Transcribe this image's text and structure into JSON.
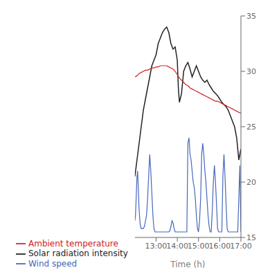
{
  "chart_data": {
    "type": "line",
    "xlabel": "Time (h)",
    "xlim": [
      12.0,
      17.0
    ],
    "xticks": [
      {
        "value": 13.0,
        "label": "13:00"
      },
      {
        "value": 14.0,
        "label": "14:00"
      },
      {
        "value": 15.0,
        "label": "15:00"
      },
      {
        "value": 16.0,
        "label": "16:00"
      },
      {
        "value": 17.0,
        "label": "17:00"
      }
    ],
    "ylim": [
      15,
      35
    ],
    "yticks": [
      15,
      20,
      25,
      30,
      35
    ],
    "grid": false,
    "legend": "bottom",
    "series": [
      {
        "name": "Solar radiation intensity",
        "color": "#222222",
        "x": [
          12.0,
          12.1,
          12.2,
          12.3,
          12.4,
          12.5,
          12.6,
          12.7,
          12.8,
          12.9,
          13.0,
          13.1,
          13.2,
          13.3,
          13.4,
          13.5,
          13.6,
          13.65,
          13.7,
          13.8,
          13.9,
          14.0,
          14.05,
          14.1,
          14.2,
          14.3,
          14.4,
          14.5,
          14.6,
          14.7,
          14.8,
          14.9,
          15.0,
          15.1,
          15.2,
          15.3,
          15.4,
          15.5,
          15.6,
          15.7,
          15.8,
          15.9,
          16.0,
          16.1,
          16.2,
          16.3,
          16.4,
          16.5,
          16.6,
          16.7,
          16.8,
          16.9,
          17.0
        ],
        "values": [
          20.5,
          22.0,
          23.5,
          25.0,
          26.5,
          27.5,
          28.5,
          29.5,
          30.5,
          31.0,
          31.5,
          32.5,
          33.0,
          33.5,
          33.8,
          34.0,
          33.5,
          33.0,
          32.5,
          32.0,
          32.2,
          31.0,
          28.5,
          27.2,
          28.0,
          30.0,
          30.5,
          30.8,
          30.2,
          29.5,
          30.0,
          30.5,
          30.0,
          29.5,
          29.2,
          29.0,
          29.2,
          28.8,
          28.5,
          28.2,
          28.0,
          27.8,
          27.5,
          27.2,
          27.0,
          26.8,
          26.5,
          26.0,
          25.5,
          25.0,
          24.0,
          22.0,
          23.0
        ]
      },
      {
        "name": "Ambient temperature",
        "color": "#cc2222",
        "x": [
          12.0,
          12.1,
          12.2,
          12.3,
          12.4,
          12.5,
          12.6,
          12.7,
          12.8,
          12.9,
          13.0,
          13.1,
          13.2,
          13.3,
          13.4,
          13.5,
          13.6,
          13.7,
          13.8,
          13.9,
          14.0,
          14.1,
          14.2,
          14.3,
          14.4,
          14.5,
          14.6,
          14.7,
          14.8,
          14.9,
          15.0,
          15.1,
          15.2,
          15.3,
          15.4,
          15.5,
          15.6,
          15.7,
          15.8,
          15.9,
          16.0,
          16.1,
          16.2,
          16.3,
          16.4,
          16.5,
          16.6,
          16.7,
          16.8,
          16.9,
          17.0
        ],
        "values": [
          29.5,
          29.6,
          29.8,
          29.9,
          30.0,
          30.1,
          30.1,
          30.2,
          30.3,
          30.3,
          30.4,
          30.4,
          30.5,
          30.5,
          30.5,
          30.5,
          30.4,
          30.3,
          30.2,
          30.0,
          29.7,
          29.4,
          29.2,
          29.0,
          28.8,
          28.7,
          28.5,
          28.4,
          28.3,
          28.2,
          28.1,
          28.0,
          27.9,
          27.8,
          27.7,
          27.6,
          27.5,
          27.4,
          27.3,
          27.3,
          27.2,
          27.1,
          27.0,
          26.9,
          26.8,
          26.7,
          26.6,
          26.5,
          26.4,
          26.3,
          26.2
        ]
      },
      {
        "name": "Wind speed",
        "color": "#4466bb",
        "x": [
          12.0,
          12.03,
          12.06,
          12.1,
          12.13,
          12.16,
          12.2,
          12.25,
          12.3,
          12.35,
          12.4,
          12.45,
          12.5,
          12.55,
          12.6,
          12.65,
          12.7,
          12.75,
          12.8,
          12.85,
          12.9,
          12.95,
          13.0,
          13.05,
          13.1,
          13.15,
          13.2,
          13.25,
          13.3,
          13.35,
          13.4,
          13.45,
          13.5,
          13.55,
          13.6,
          13.65,
          13.7,
          13.75,
          13.8,
          13.85,
          13.9,
          13.95,
          14.0,
          14.05,
          14.1,
          14.15,
          14.2,
          14.25,
          14.3,
          14.35,
          14.4,
          14.45,
          14.5,
          14.55,
          14.6,
          14.65,
          14.7,
          14.75,
          14.8,
          14.85,
          14.9,
          14.95,
          15.0,
          15.05,
          15.1,
          15.15,
          15.2,
          15.25,
          15.3,
          15.35,
          15.4,
          15.45,
          15.5,
          15.55,
          15.6,
          15.65,
          15.7,
          15.75,
          15.8,
          15.85,
          15.9,
          15.95,
          16.0,
          16.05,
          16.1,
          16.15,
          16.2,
          16.25,
          16.3,
          16.35,
          16.4,
          16.45,
          16.5,
          16.55,
          16.6,
          16.65,
          16.7,
          16.75,
          16.8,
          16.85,
          16.9,
          16.95,
          17.0
        ],
        "values": [
          16.5,
          17.0,
          18.5,
          20.5,
          21.0,
          19.5,
          17.5,
          16.2,
          15.8,
          15.8,
          15.8,
          16.0,
          16.5,
          17.0,
          18.5,
          20.5,
          22.5,
          21.0,
          19.0,
          17.0,
          15.8,
          15.5,
          15.5,
          15.5,
          15.5,
          15.5,
          15.5,
          15.5,
          15.5,
          15.5,
          15.5,
          15.5,
          15.5,
          15.5,
          15.5,
          15.6,
          16.0,
          16.5,
          16.3,
          15.8,
          15.5,
          15.5,
          15.5,
          15.5,
          15.5,
          15.5,
          15.5,
          15.5,
          15.5,
          15.5,
          15.5,
          15.5,
          23.5,
          24.0,
          22.5,
          22.0,
          21.0,
          20.0,
          19.5,
          18.5,
          17.0,
          15.8,
          15.5,
          16.5,
          18.5,
          22.5,
          23.5,
          22.5,
          21.0,
          20.0,
          18.5,
          17.0,
          16.0,
          15.5,
          15.5,
          17.5,
          20.0,
          21.5,
          20.0,
          18.0,
          15.8,
          15.5,
          15.5,
          15.5,
          15.5,
          20.5,
          22.5,
          20.5,
          18.0,
          15.8,
          15.5,
          15.5,
          15.5,
          15.5,
          15.5,
          15.5,
          15.5,
          15.5,
          15.5,
          15.5,
          18.5,
          21.5,
          15.5
        ]
      }
    ]
  }
}
